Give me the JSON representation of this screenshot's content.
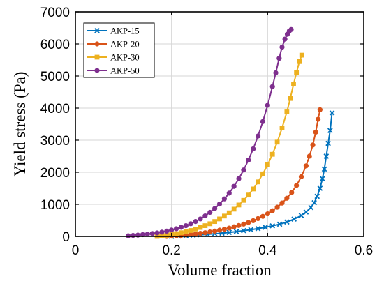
{
  "chart_data": {
    "type": "line",
    "title": "",
    "xlabel": "Volume fraction",
    "ylabel": "Yield stress (Pa)",
    "xlim": [
      0,
      0.6
    ],
    "ylim": [
      0,
      7000
    ],
    "xticks": [
      "0",
      "0.2",
      "0.4",
      "0.6"
    ],
    "yticks": [
      "0",
      "1000",
      "2000",
      "3000",
      "4000",
      "5000",
      "6000",
      "7000"
    ],
    "grid": true,
    "legend_position": "top-left",
    "series": [
      {
        "name": "AKP-15",
        "color": "#0072BD",
        "marker": "x",
        "x": [
          0.2,
          0.215,
          0.23,
          0.245,
          0.26,
          0.275,
          0.29,
          0.305,
          0.32,
          0.335,
          0.35,
          0.365,
          0.38,
          0.395,
          0.41,
          0.425,
          0.44,
          0.455,
          0.47,
          0.48,
          0.49,
          0.497,
          0.503,
          0.509,
          0.514,
          0.518,
          0.522,
          0.526,
          0.53,
          0.534
        ],
        "y": [
          0,
          10,
          20,
          35,
          50,
          65,
          85,
          100,
          125,
          150,
          180,
          210,
          245,
          285,
          330,
          380,
          450,
          540,
          650,
          760,
          900,
          1050,
          1250,
          1500,
          1800,
          2100,
          2500,
          2900,
          3300,
          3850
        ]
      },
      {
        "name": "AKP-20",
        "color": "#D95319",
        "marker": "o",
        "x": [
          0.19,
          0.2,
          0.21,
          0.22,
          0.23,
          0.24,
          0.25,
          0.26,
          0.27,
          0.28,
          0.29,
          0.3,
          0.31,
          0.32,
          0.33,
          0.34,
          0.35,
          0.36,
          0.37,
          0.38,
          0.39,
          0.4,
          0.41,
          0.42,
          0.43,
          0.44,
          0.45,
          0.46,
          0.47,
          0.48,
          0.487,
          0.494,
          0.5,
          0.505,
          0.509
        ],
        "y": [
          0,
          10,
          20,
          30,
          45,
          60,
          75,
          95,
          115,
          140,
          165,
          195,
          225,
          260,
          300,
          340,
          385,
          435,
          490,
          555,
          625,
          705,
          800,
          910,
          1040,
          1190,
          1370,
          1590,
          1860,
          2200,
          2500,
          2850,
          3250,
          3650,
          3950
        ]
      },
      {
        "name": "AKP-30",
        "color": "#EDB120",
        "marker": "s",
        "x": [
          0.17,
          0.18,
          0.19,
          0.2,
          0.21,
          0.22,
          0.23,
          0.24,
          0.25,
          0.26,
          0.27,
          0.28,
          0.29,
          0.3,
          0.31,
          0.32,
          0.33,
          0.34,
          0.35,
          0.36,
          0.37,
          0.38,
          0.39,
          0.4,
          0.41,
          0.42,
          0.43,
          0.44,
          0.447,
          0.454,
          0.46,
          0.466,
          0.471
        ],
        "y": [
          0,
          15,
          35,
          60,
          85,
          115,
          150,
          185,
          230,
          280,
          335,
          395,
          465,
          545,
          635,
          735,
          850,
          980,
          1125,
          1290,
          1480,
          1700,
          1950,
          2230,
          2560,
          2940,
          3380,
          3880,
          4300,
          4750,
          5100,
          5450,
          5650
        ]
      },
      {
        "name": "AKP-50",
        "color": "#7E2F8E",
        "marker": "o",
        "x": [
          0.11,
          0.12,
          0.13,
          0.14,
          0.15,
          0.16,
          0.17,
          0.18,
          0.19,
          0.2,
          0.21,
          0.22,
          0.23,
          0.24,
          0.25,
          0.26,
          0.27,
          0.28,
          0.29,
          0.3,
          0.31,
          0.32,
          0.33,
          0.34,
          0.35,
          0.36,
          0.37,
          0.38,
          0.39,
          0.4,
          0.41,
          0.417,
          0.424,
          0.43,
          0.436,
          0.441,
          0.445,
          0.449
        ],
        "y": [
          20,
          30,
          40,
          55,
          70,
          90,
          110,
          135,
          165,
          200,
          240,
          285,
          335,
          395,
          465,
          545,
          640,
          750,
          870,
          1010,
          1170,
          1350,
          1560,
          1800,
          2070,
          2380,
          2730,
          3130,
          3580,
          4090,
          4670,
          5100,
          5550,
          5900,
          6150,
          6300,
          6400,
          6450
        ]
      }
    ]
  }
}
